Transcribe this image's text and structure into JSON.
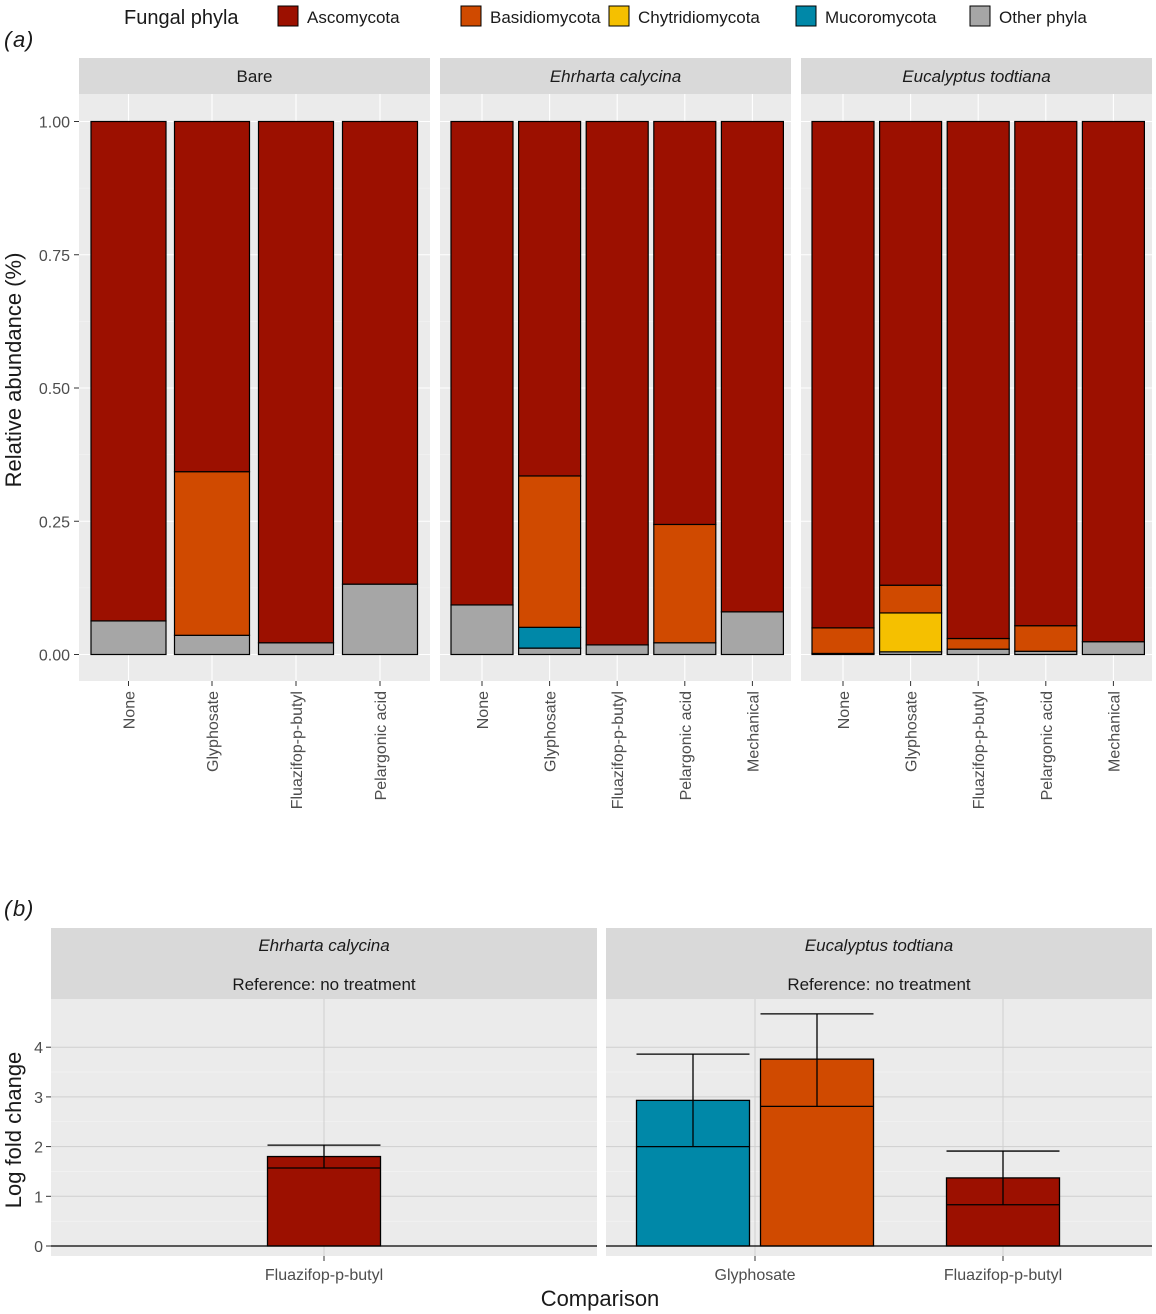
{
  "legend": {
    "title": "Fungal phyla",
    "entries": [
      {
        "name": "Ascomycota",
        "color": "#9C1000"
      },
      {
        "name": "Basidiomycota",
        "color": "#D04A00"
      },
      {
        "name": "Chytridiomycota",
        "color": "#F5C000"
      },
      {
        "name": "Mucoromycota",
        "color": "#0088A8"
      },
      {
        "name": "Other phyla",
        "color": "#A6A6A6"
      }
    ]
  },
  "panel_a": {
    "tag": "a",
    "ylabel": "Relative abundance (%)",
    "yticks": [
      "0.00",
      "0.25",
      "0.50",
      "0.75",
      "1.00"
    ],
    "facets": [
      "Bare",
      "Ehrharta calycina",
      "Eucalyptus todtiana"
    ]
  },
  "panel_b": {
    "tag": "b",
    "ylabel": "Log fold change",
    "xlabel": "Comparison",
    "yticks": [
      "0",
      "1",
      "2",
      "3",
      "4"
    ],
    "facets": [
      "Ehrharta calycina",
      "Eucalyptus todtiana"
    ],
    "reference_label": "Reference: no treatment"
  },
  "chart_data": [
    {
      "type": "bar",
      "stacked": true,
      "title": "(a)",
      "xlabel": "",
      "ylabel": "Relative abundance (%)",
      "ylim": [
        0,
        1
      ],
      "series_order": [
        "Other phyla",
        "Mucoromycota",
        "Chytridiomycota",
        "Basidiomycota",
        "Ascomycota"
      ],
      "facets": [
        {
          "name": "Bare",
          "categories": [
            "None",
            "Glyphosate",
            "Fluazifop-p-butyl",
            "Pelargonic acid"
          ],
          "series": [
            {
              "name": "Other phyla",
              "values": [
                0.063,
                0.036,
                0.022,
                0.132
              ]
            },
            {
              "name": "Mucoromycota",
              "values": [
                0,
                0,
                0,
                0
              ]
            },
            {
              "name": "Chytridiomycota",
              "values": [
                0,
                0,
                0,
                0
              ]
            },
            {
              "name": "Basidiomycota",
              "values": [
                0,
                0.307,
                0,
                0
              ]
            },
            {
              "name": "Ascomycota",
              "values": [
                0.937,
                0.657,
                0.978,
                0.868
              ]
            }
          ]
        },
        {
          "name": "Ehrharta calycina",
          "categories": [
            "None",
            "Glyphosate",
            "Fluazifop-p-butyl",
            "Pelargonic acid",
            "Mechanical"
          ],
          "series": [
            {
              "name": "Other phyla",
              "values": [
                0.093,
                0.012,
                0.018,
                0.022,
                0.08
              ]
            },
            {
              "name": "Mucoromycota",
              "values": [
                0,
                0.039,
                0,
                0,
                0
              ]
            },
            {
              "name": "Chytridiomycota",
              "values": [
                0,
                0,
                0,
                0,
                0
              ]
            },
            {
              "name": "Basidiomycota",
              "values": [
                0,
                0.284,
                0,
                0.222,
                0
              ]
            },
            {
              "name": "Ascomycota",
              "values": [
                0.907,
                0.665,
                0.982,
                0.756,
                0.92
              ]
            }
          ]
        },
        {
          "name": "Eucalyptus todtiana",
          "categories": [
            "None",
            "Glyphosate",
            "Fluazifop-p-butyl",
            "Pelargonic acid",
            "Mechanical"
          ],
          "series": [
            {
              "name": "Other phyla",
              "values": [
                0.002,
                0.005,
                0.01,
                0.006,
                0.024
              ]
            },
            {
              "name": "Mucoromycota",
              "values": [
                0,
                0,
                0,
                0,
                0
              ]
            },
            {
              "name": "Chytridiomycota",
              "values": [
                0,
                0.073,
                0,
                0,
                0
              ]
            },
            {
              "name": "Basidiomycota",
              "values": [
                0.048,
                0.052,
                0.02,
                0.048,
                0
              ]
            },
            {
              "name": "Ascomycota",
              "values": [
                0.95,
                0.87,
                0.97,
                0.946,
                0.976
              ]
            }
          ]
        }
      ]
    },
    {
      "type": "bar",
      "title": "(b)",
      "xlabel": "Comparison",
      "ylabel": "Log fold change",
      "ylim": [
        -0.1,
        4.85
      ],
      "facets": [
        {
          "name": "Ehrharta calycina",
          "subtitle": "Reference: no treatment",
          "categories": [
            "Fluazifop-p-butyl"
          ],
          "bars": [
            {
              "category": "Fluazifop-p-butyl",
              "phylum": "Ascomycota",
              "value": 1.8,
              "error_low": 1.57,
              "error_high": 2.03
            }
          ]
        },
        {
          "name": "Eucalyptus todtiana",
          "subtitle": "Reference: no treatment",
          "categories": [
            "Glyphosate",
            "Fluazifop-p-butyl"
          ],
          "bars": [
            {
              "category": "Glyphosate",
              "phylum": "Mucoromycota",
              "value": 2.93,
              "error_low": 2.0,
              "error_high": 3.86
            },
            {
              "category": "Glyphosate",
              "phylum": "Basidiomycota",
              "value": 3.76,
              "error_low": 2.81,
              "error_high": 4.67
            },
            {
              "category": "Fluazifop-p-butyl",
              "phylum": "Ascomycota",
              "value": 1.37,
              "error_low": 0.83,
              "error_high": 1.91
            }
          ]
        }
      ]
    }
  ]
}
